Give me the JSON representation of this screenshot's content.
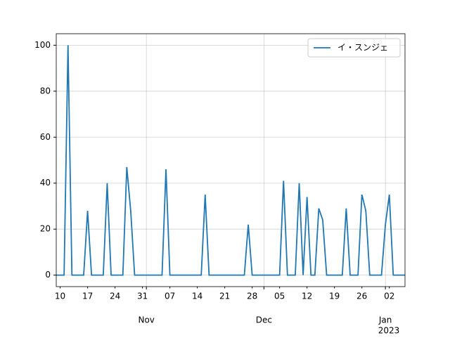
{
  "chart_data": {
    "type": "line",
    "x": [
      "2022-10-09",
      "2022-10-10",
      "2022-10-11",
      "2022-10-12",
      "2022-10-13",
      "2022-10-14",
      "2022-10-15",
      "2022-10-16",
      "2022-10-17",
      "2022-10-18",
      "2022-10-19",
      "2022-10-20",
      "2022-10-21",
      "2022-10-22",
      "2022-10-23",
      "2022-10-24",
      "2022-10-25",
      "2022-10-26",
      "2022-10-27",
      "2022-10-28",
      "2022-10-29",
      "2022-10-30",
      "2022-10-31",
      "2022-11-01",
      "2022-11-02",
      "2022-11-03",
      "2022-11-04",
      "2022-11-05",
      "2022-11-06",
      "2022-11-07",
      "2022-11-08",
      "2022-11-09",
      "2022-11-10",
      "2022-11-11",
      "2022-11-12",
      "2022-11-13",
      "2022-11-14",
      "2022-11-15",
      "2022-11-16",
      "2022-11-17",
      "2022-11-18",
      "2022-11-19",
      "2022-11-20",
      "2022-11-21",
      "2022-11-22",
      "2022-11-23",
      "2022-11-24",
      "2022-11-25",
      "2022-11-26",
      "2022-11-27",
      "2022-11-28",
      "2022-11-29",
      "2022-11-30",
      "2022-12-01",
      "2022-12-02",
      "2022-12-03",
      "2022-12-04",
      "2022-12-05",
      "2022-12-06",
      "2022-12-07",
      "2022-12-08",
      "2022-12-09",
      "2022-12-10",
      "2022-12-11",
      "2022-12-12",
      "2022-12-13",
      "2022-12-14",
      "2022-12-15",
      "2022-12-16",
      "2022-12-17",
      "2022-12-18",
      "2022-12-19",
      "2022-12-20",
      "2022-12-21",
      "2022-12-22",
      "2022-12-23",
      "2022-12-24",
      "2022-12-25",
      "2022-12-26",
      "2022-12-27",
      "2022-12-28",
      "2022-12-29",
      "2022-12-30",
      "2022-12-31",
      "2023-01-01",
      "2023-01-02",
      "2023-01-03",
      "2023-01-04",
      "2023-01-05",
      "2023-01-06"
    ],
    "series": [
      {
        "name": "イ・スンジェ",
        "color": "#1f77b4",
        "values": [
          0,
          0,
          0,
          100,
          0,
          0,
          0,
          0,
          28,
          0,
          0,
          0,
          0,
          40,
          0,
          0,
          0,
          0,
          47,
          28,
          0,
          0,
          0,
          0,
          0,
          0,
          0,
          0,
          46,
          0,
          0,
          0,
          0,
          0,
          0,
          0,
          0,
          0,
          35,
          0,
          0,
          0,
          0,
          0,
          0,
          0,
          0,
          0,
          0,
          22,
          0,
          0,
          0,
          0,
          0,
          0,
          0,
          0,
          41,
          0,
          0,
          0,
          40,
          0,
          34,
          0,
          0,
          29,
          24,
          0,
          0,
          0,
          0,
          0,
          29,
          0,
          0,
          0,
          35,
          28,
          0,
          0,
          0,
          0,
          22,
          35,
          0,
          0,
          0,
          0
        ]
      }
    ],
    "xlim": [
      "2022-10-09",
      "2023-01-06"
    ],
    "xticks": [
      {
        "value": "2022-11-01",
        "label": "Nov"
      },
      {
        "value": "2022-12-01",
        "label": "Dec"
      },
      {
        "value": "2023-01-01",
        "label": "Jan"
      }
    ],
    "xminorticks": [
      {
        "value": "2022-10-10",
        "label": "10"
      },
      {
        "value": "2022-10-17",
        "label": "17"
      },
      {
        "value": "2022-10-24",
        "label": "24"
      },
      {
        "value": "2022-10-31",
        "label": "31"
      },
      {
        "value": "2022-11-07",
        "label": "07"
      },
      {
        "value": "2022-11-14",
        "label": "14"
      },
      {
        "value": "2022-11-21",
        "label": "21"
      },
      {
        "value": "2022-11-28",
        "label": "28"
      },
      {
        "value": "2022-12-05",
        "label": "05"
      },
      {
        "value": "2022-12-12",
        "label": "12"
      },
      {
        "value": "2022-12-19",
        "label": "19"
      },
      {
        "value": "2022-12-26",
        "label": "26"
      },
      {
        "value": "2023-01-02",
        "label": "02"
      }
    ],
    "x_offset_label": "2023",
    "ylim": [
      -5,
      105
    ],
    "yticks": [
      0,
      20,
      40,
      60,
      80,
      100
    ],
    "grid": true,
    "legend": "upper right"
  }
}
